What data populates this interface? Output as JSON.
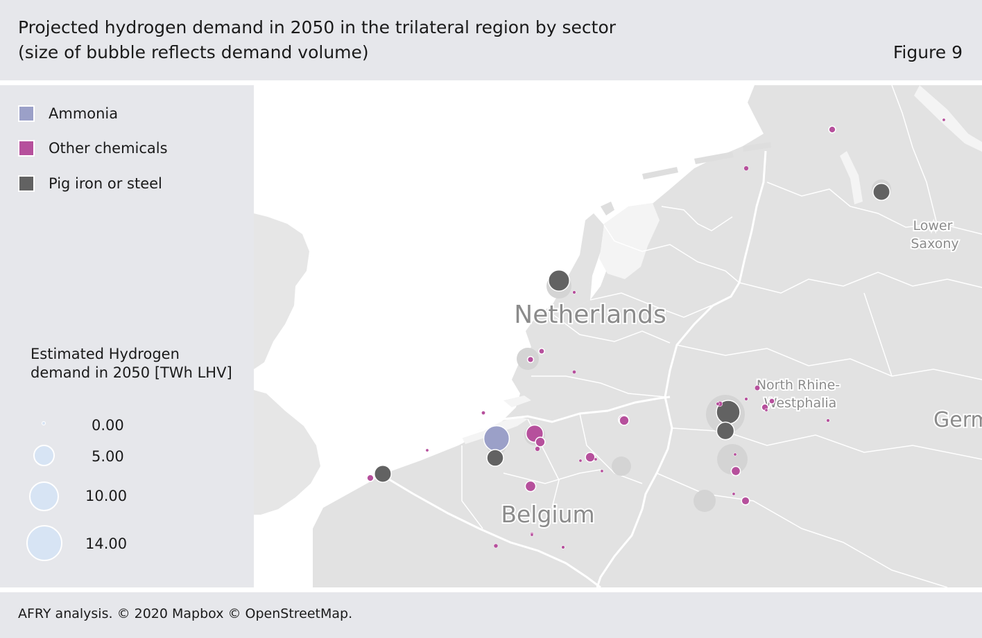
{
  "header": {
    "title": "Projected hydrogen demand in 2050 in the trilateral region by sector\n(size of bubble reflects demand volume)",
    "figure_label": "Figure 9"
  },
  "legend": {
    "items": [
      {
        "label": "Ammonia",
        "color": "#9ba0c8"
      },
      {
        "label": "Other chemicals",
        "color": "#b6509c"
      },
      {
        "label": "Pig iron or steel",
        "color": "#626262"
      }
    ]
  },
  "size_legend": {
    "title": "Estimated Hydrogen\ndemand in 2050 [TWh LHV]",
    "entries": [
      {
        "value": "0.00",
        "twh": 0
      },
      {
        "value": "5.00",
        "twh": 5
      },
      {
        "value": "10.00",
        "twh": 10
      },
      {
        "value": "14.00",
        "twh": 14
      }
    ]
  },
  "map": {
    "labels": {
      "netherlands": "Netherlands",
      "belgium": "Belgium",
      "lower_saxony": "Lower\nSaxony",
      "nrw": "North Rhine-\nWestphalia",
      "germany": "Germany"
    },
    "bubbles": [
      {
        "sector": "Ammonia",
        "twh": 7.0
      },
      {
        "sector": "Pig iron or steel",
        "twh": 4.8
      },
      {
        "sector": "Pig iron or steel",
        "twh": 3.0
      },
      {
        "sector": "Pig iron or steel",
        "twh": 3.1
      },
      {
        "sector": "Pig iron or steel",
        "twh": 3.1
      },
      {
        "sector": "Pig iron or steel",
        "twh": 6.0
      },
      {
        "sector": "Pig iron or steel",
        "twh": 3.3
      },
      {
        "sector": "Other chemicals",
        "twh": 3.2
      },
      {
        "sector": "Other chemicals",
        "twh": 1.0
      },
      {
        "sector": "Other chemicals",
        "twh": 1.2
      },
      {
        "sector": "Other chemicals",
        "twh": 1.0
      },
      {
        "sector": "Other chemicals",
        "twh": 0.9
      },
      {
        "sector": "Other chemicals",
        "twh": 0.7
      },
      {
        "sector": "Other chemicals",
        "twh": 0.5
      },
      {
        "sector": "Other chemicals",
        "twh": 1.1
      },
      {
        "sector": "Other chemicals",
        "twh": 1.0
      },
      {
        "sector": "Other chemicals",
        "twh": 0.5
      },
      {
        "sector": "Other chemicals",
        "twh": 0.25
      },
      {
        "sector": "Other chemicals",
        "twh": 0.25
      },
      {
        "sector": "Other chemicals",
        "twh": 0.4
      },
      {
        "sector": "Other chemicals",
        "twh": 0.35
      },
      {
        "sector": "Other chemicals",
        "twh": 0.3
      },
      {
        "sector": "Other chemicals",
        "twh": 0.35
      },
      {
        "sector": "Other chemicals",
        "twh": 0.5
      },
      {
        "sector": "Other chemicals",
        "twh": 0.3
      },
      {
        "sector": "Other chemicals",
        "twh": 0.2
      },
      {
        "sector": "Other chemicals",
        "twh": 0.15
      },
      {
        "sector": "Other chemicals",
        "twh": 0.12
      },
      {
        "sector": "Other chemicals",
        "twh": 0.15
      },
      {
        "sector": "Other chemicals",
        "twh": 0.12
      },
      {
        "sector": "Other chemicals",
        "twh": 0.15
      },
      {
        "sector": "Other chemicals",
        "twh": 0.1
      },
      {
        "sector": "Other chemicals",
        "twh": 0.1
      },
      {
        "sector": "Other chemicals",
        "twh": 0.1
      },
      {
        "sector": "Other chemicals",
        "twh": 0.1
      },
      {
        "sector": "Other chemicals",
        "twh": 0.1
      },
      {
        "sector": "Other chemicals",
        "twh": 0.1
      },
      {
        "sector": "Other chemicals",
        "twh": 0.1
      },
      {
        "sector": "Other chemicals",
        "twh": 0.12
      },
      {
        "sector": "Other chemicals",
        "twh": 0.1
      },
      {
        "sector": "Other chemicals",
        "twh": 0.1
      },
      {
        "sector": "Other chemicals",
        "twh": 0.12
      },
      {
        "sector": "Other chemicals",
        "twh": 0.12
      }
    ]
  },
  "footer": {
    "source": "AFRY analysis. © 2020 Mapbox © OpenStreetMap."
  }
}
